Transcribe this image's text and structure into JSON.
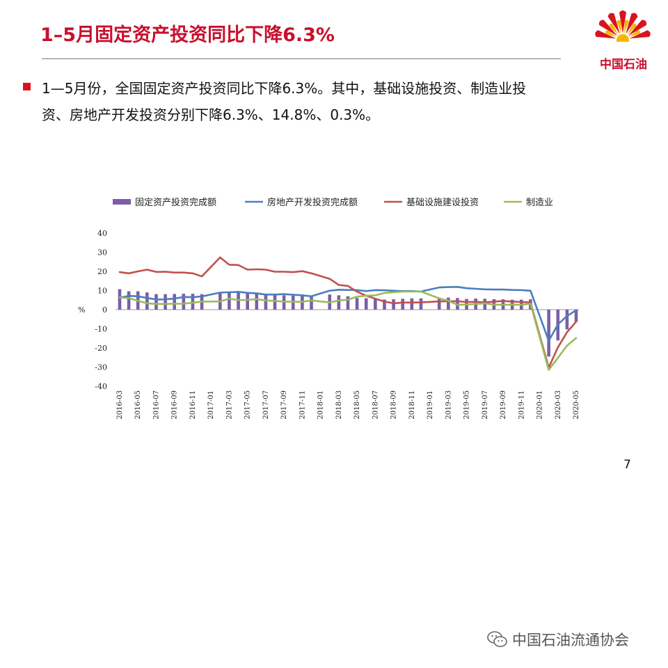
{
  "slide": {
    "title": "1–5月固定资产投资同比下降6.3%",
    "page_number": "7"
  },
  "logo": {
    "text": "中国石油",
    "colors": {
      "red": "#d9141e",
      "yellow": "#f5b800"
    }
  },
  "bullet": {
    "line1": "1—5月份，全国固定资产投资同比下降6.3%。其中，基础设施投资、制造业投",
    "line2": "资、房地产开发投资分别下降6.3%、14.8%、0.3%。",
    "marker_color": "#d9141e"
  },
  "watermark": {
    "text": "中国石油流通协会",
    "icon": "wechat-icon"
  },
  "chart_data": {
    "type": "bar+line",
    "ylabel": "%",
    "ylim": [
      -40,
      40
    ],
    "yticks": [
      40,
      30,
      20,
      10,
      0,
      -10,
      -20,
      -30,
      -40
    ],
    "legend_position": "top",
    "x": [
      "2016-03",
      "2016-04",
      "2016-05",
      "2016-06",
      "2016-07",
      "2016-08",
      "2016-09",
      "2016-10",
      "2016-11",
      "2016-12",
      "2017-01",
      "2017-02",
      "2017-03",
      "2017-04",
      "2017-05",
      "2017-06",
      "2017-07",
      "2017-08",
      "2017-09",
      "2017-10",
      "2017-11",
      "2017-12",
      "2018-01",
      "2018-02",
      "2018-03",
      "2018-04",
      "2018-05",
      "2018-06",
      "2018-07",
      "2018-08",
      "2018-09",
      "2018-10",
      "2018-11",
      "2018-12",
      "2019-01",
      "2019-02",
      "2019-03",
      "2019-04",
      "2019-05",
      "2019-06",
      "2019-07",
      "2019-08",
      "2019-09",
      "2019-10",
      "2019-11",
      "2019-12",
      "2020-01",
      "2020-02",
      "2020-03",
      "2020-04",
      "2020-05"
    ],
    "x_tick_labels": [
      "2016-03",
      "2016-05",
      "2016-07",
      "2016-09",
      "2016-11",
      "2017-01",
      "2017-03",
      "2017-05",
      "2017-07",
      "2017-09",
      "2017-11",
      "2018-01",
      "2018-03",
      "2018-05",
      "2018-07",
      "2018-09",
      "2018-11",
      "2019-01",
      "2019-03",
      "2019-05",
      "2019-07",
      "2019-09",
      "2019-11",
      "2020-01",
      "2020-03",
      "2020-05"
    ],
    "series": [
      {
        "name": "固定资产投资完成额",
        "kind": "bar",
        "color": "#7b5ea7",
        "values": [
          10.7,
          9.6,
          9.6,
          9.0,
          8.1,
          8.1,
          8.2,
          8.3,
          8.3,
          8.1,
          null,
          8.9,
          9.2,
          8.9,
          8.6,
          8.6,
          8.3,
          7.8,
          7.5,
          7.3,
          7.2,
          7.2,
          null,
          7.9,
          7.5,
          7.0,
          6.1,
          6.0,
          5.5,
          5.3,
          5.4,
          5.7,
          5.9,
          5.9,
          null,
          6.1,
          6.3,
          6.1,
          5.6,
          5.8,
          5.7,
          5.5,
          5.4,
          5.2,
          5.2,
          5.4,
          null,
          -24.5,
          -16.1,
          -10.3,
          -6.3
        ]
      },
      {
        "name": "房地产开发投资完成额",
        "kind": "line",
        "color": "#4a7ebb",
        "values": [
          6.2,
          7.2,
          7.0,
          6.1,
          5.3,
          5.4,
          5.8,
          6.6,
          6.5,
          6.9,
          null,
          8.9,
          9.1,
          9.3,
          8.8,
          8.5,
          7.9,
          7.9,
          8.1,
          7.8,
          7.5,
          7.0,
          null,
          9.9,
          10.4,
          10.3,
          10.2,
          9.7,
          10.2,
          10.1,
          9.9,
          9.7,
          9.7,
          9.5,
          null,
          11.6,
          11.8,
          11.9,
          11.2,
          10.9,
          10.6,
          10.5,
          10.5,
          10.3,
          10.2,
          9.9,
          null,
          -16.3,
          -7.7,
          -3.3,
          -0.3
        ]
      },
      {
        "name": "基础设施建设投资",
        "kind": "line",
        "color": "#c0504d",
        "values": [
          19.6,
          19.0,
          20.0,
          20.9,
          19.7,
          19.8,
          19.4,
          19.4,
          19.0,
          17.4,
          null,
          27.3,
          23.5,
          23.3,
          20.9,
          21.1,
          20.9,
          19.8,
          19.8,
          19.6,
          20.1,
          19.0,
          null,
          16.1,
          12.9,
          12.4,
          9.4,
          7.3,
          5.7,
          4.2,
          3.3,
          3.7,
          3.7,
          3.8,
          null,
          4.3,
          4.4,
          4.4,
          4.0,
          4.1,
          3.8,
          4.2,
          4.5,
          4.2,
          4.0,
          3.8,
          null,
          -30.3,
          -19.7,
          -11.8,
          -6.3
        ]
      },
      {
        "name": "制造业",
        "kind": "line",
        "color": "#9bbb59",
        "values": [
          6.4,
          6.0,
          4.6,
          3.3,
          3.0,
          3.0,
          3.1,
          3.1,
          3.6,
          4.2,
          null,
          4.3,
          5.8,
          5.0,
          5.1,
          5.5,
          4.8,
          4.5,
          4.2,
          4.1,
          4.1,
          4.8,
          null,
          3.8,
          4.8,
          5.2,
          6.8,
          7.3,
          7.5,
          8.7,
          9.1,
          9.5,
          9.5,
          9.5,
          null,
          5.9,
          4.6,
          2.5,
          2.7,
          3.0,
          3.3,
          2.6,
          2.5,
          2.6,
          2.5,
          3.1,
          null,
          -31.5,
          -25.2,
          -18.8,
          -14.8
        ]
      }
    ]
  }
}
